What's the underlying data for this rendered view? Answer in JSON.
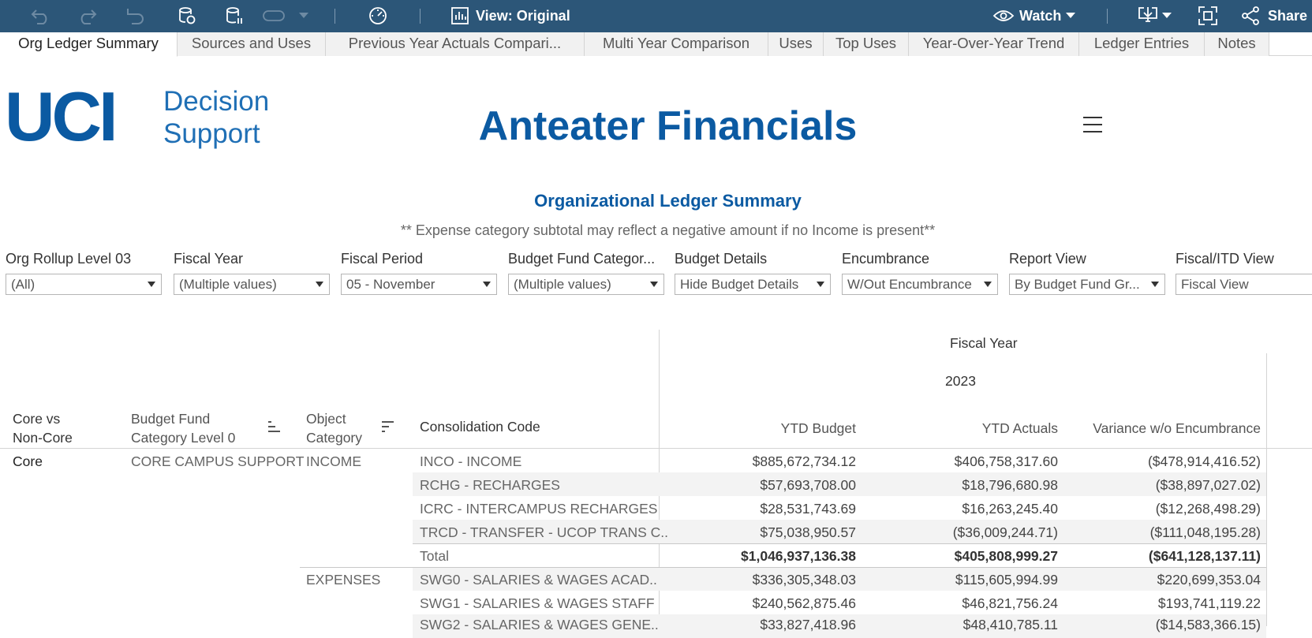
{
  "toolbar": {
    "view_label": "View: Original",
    "watch_label": "Watch",
    "share_label": "Share"
  },
  "tabs": [
    {
      "label": "Org Ledger Summary",
      "active": true
    },
    {
      "label": "Sources and Uses"
    },
    {
      "label": "Previous Year Actuals Compari..."
    },
    {
      "label": "Multi Year Comparison"
    },
    {
      "label": "Uses"
    },
    {
      "label": "Top Uses"
    },
    {
      "label": "Year-Over-Year Trend"
    },
    {
      "label": "Ledger Entries"
    },
    {
      "label": "Notes"
    }
  ],
  "header": {
    "logo_main": "UCI",
    "logo_line1": "Decision",
    "logo_line2": "Support",
    "title": "Anteater Financials",
    "subtitle": "Organizational Ledger Summary",
    "note": "** Expense category subtotal may reflect a negative amount if no Income is present**"
  },
  "filters": [
    {
      "label": "Org Rollup Level 03",
      "value": "(All)"
    },
    {
      "label": "Fiscal Year",
      "value": "(Multiple values)"
    },
    {
      "label": "Fiscal Period",
      "value": "05 - November"
    },
    {
      "label": "Budget Fund Categor...",
      "value": "(Multiple values)"
    },
    {
      "label": "Budget Details",
      "value": "Hide Budget Details"
    },
    {
      "label": "Encumbrance",
      "value": "W/Out Encumbrance"
    },
    {
      "label": "Report View",
      "value": "By Budget Fund Gr..."
    },
    {
      "label": "Fiscal/ITD View",
      "value": "Fiscal View"
    }
  ],
  "table": {
    "fiscal_year_header": "Fiscal Year",
    "year": "2023",
    "columns": {
      "core": [
        "Core vs",
        "Non-Core"
      ],
      "budget_fund": [
        "Budget Fund",
        "Category Level 0"
      ],
      "object_category": [
        "Object",
        "Category"
      ],
      "consolidation": "Consolidation Code",
      "ytd_budget": "YTD Budget",
      "ytd_actuals": "YTD Actuals",
      "variance": "Variance w/o Encumbrance"
    },
    "core_value": "Core",
    "budget_fund_value": "CORE CAMPUS SUPPORT",
    "income_label": "INCOME",
    "expenses_label": "EXPENSES",
    "rows": [
      {
        "code": "INCO - INCOME",
        "budget": "$885,672,734.12",
        "actuals": "$406,758,317.60",
        "variance": "($478,914,416.52)"
      },
      {
        "code": "RCHG - RECHARGES",
        "budget": "$57,693,708.00",
        "actuals": "$18,796,680.98",
        "variance": "($38,897,027.02)"
      },
      {
        "code": "ICRC - INTERCAMPUS RECHARGES",
        "budget": "$28,531,743.69",
        "actuals": "$16,263,245.40",
        "variance": "($12,268,498.29)"
      },
      {
        "code": "TRCD - TRANSFER - UCOP TRANS C..",
        "budget": "$75,038,950.57",
        "actuals": "($36,009,244.71)",
        "variance": "($111,048,195.28)"
      },
      {
        "code": "Total",
        "budget": "$1,046,937,136.38",
        "actuals": "$405,808,999.27",
        "variance": "($641,128,137.11)"
      },
      {
        "code": "SWG0 - SALARIES & WAGES ACAD..",
        "budget": "$336,305,348.03",
        "actuals": "$115,605,994.99",
        "variance": "$220,699,353.04"
      },
      {
        "code": "SWG1 - SALARIES & WAGES STAFF",
        "budget": "$240,562,875.46",
        "actuals": "$46,821,756.24",
        "variance": "$193,741,119.22"
      },
      {
        "code": "SWG2 - SALARIES & WAGES GENE..",
        "budget": "$33,827,418.96",
        "actuals": "$48,410,785.11",
        "variance": "($14,583,366.15)"
      }
    ]
  }
}
